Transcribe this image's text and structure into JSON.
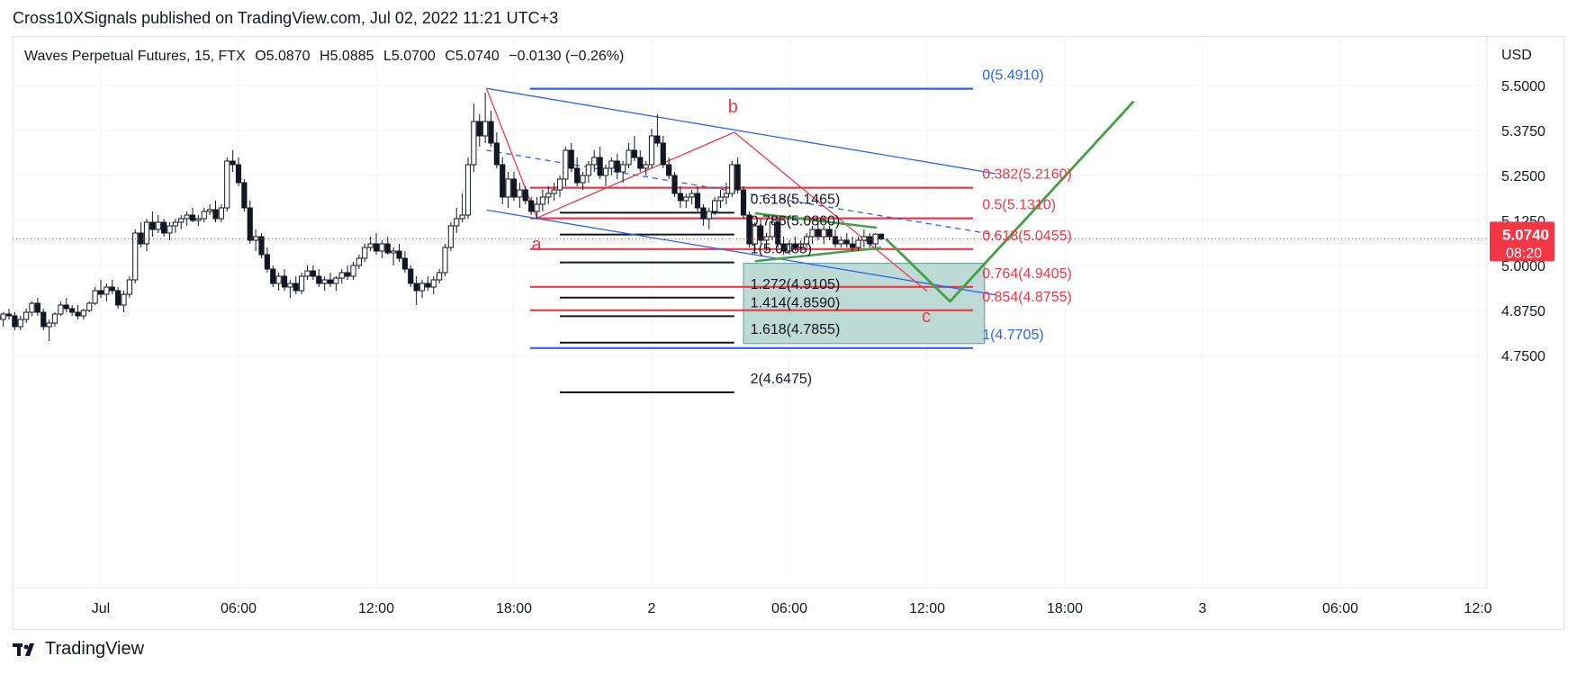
{
  "header": {
    "publish_line": "Cross10XSignals published on TradingView.com, Jul 02, 2022 11:21 UTC+3"
  },
  "legend": {
    "symbol": "Waves Perpetual Futures, 15, FTX",
    "open": "O5.0870",
    "high": "H5.0885",
    "low": "L5.0700",
    "close": "C5.0740",
    "change": "−0.0130 (−0.26%)"
  },
  "footer": {
    "brand": "TradingView",
    "icon": "tradingview-logo-icon"
  },
  "colors": {
    "up": "#ffffff",
    "down": "#131722",
    "fib_blue": "#2962ff",
    "fib_red": "#f23645",
    "channel": "#2962ff",
    "wave": "#f23645",
    "projection": "#43a047",
    "box": "#b2d4ce"
  },
  "chart_data": {
    "type": "candlestick",
    "currency_label": "USD",
    "price_axis": {
      "ticks": [
        "5.5000",
        "5.3750",
        "5.2500",
        "5.1250",
        "5.0000",
        "4.8750",
        "4.7500"
      ],
      "range": [
        4.6,
        5.53
      ]
    },
    "time_axis": {
      "ticks": [
        "Jul",
        "06:00",
        "12:00",
        "18:00",
        "2",
        "06:00",
        "12:00",
        "18:00",
        "3",
        "06:00",
        "12:0"
      ]
    },
    "last_price": {
      "value": "5.0740",
      "countdown": "08:20"
    },
    "wave_labels": [
      "a",
      "b",
      "c"
    ],
    "fib_right": [
      {
        "label": "0(5.4910)",
        "price": 5.491,
        "color": "blue"
      },
      {
        "label": "0.382(5.2160)",
        "price": 5.216,
        "color": "red"
      },
      {
        "label": "0.5(5.1310)",
        "price": 5.131,
        "color": "red"
      },
      {
        "label": "0.618(5.0455)",
        "price": 5.0455,
        "color": "red"
      },
      {
        "label": "0.764(4.9405)",
        "price": 4.9405,
        "color": "red"
      },
      {
        "label": "0.854(4.8755)",
        "price": 4.8755,
        "color": "red"
      },
      {
        "label": "1(4.7705)",
        "price": 4.7705,
        "color": "blue"
      }
    ],
    "fib_left": [
      {
        "label": "0.618(5.1465)",
        "price": 5.1465
      },
      {
        "label": "0.786(5.0860)",
        "price": 5.086
      },
      {
        "label": "1(5.0085)",
        "price": 5.0085
      },
      {
        "label": "1.272(4.9105)",
        "price": 4.9105
      },
      {
        "label": "1.414(4.8590)",
        "price": 4.859
      },
      {
        "label": "1.618(4.7855)",
        "price": 4.7855
      },
      {
        "label": "2(4.6475)",
        "price": 4.6475
      }
    ],
    "anchors": {
      "high_start": {
        "t": 16.8,
        "p": 5.492
      },
      "a": {
        "t": 19.0,
        "p": 5.132
      },
      "b": {
        "t": 27.6,
        "p": 5.37
      },
      "c": {
        "t": 36.0,
        "p": 4.928
      },
      "green_bottom": {
        "t": 37.0,
        "p": 4.9
      },
      "green_top": {
        "t": 45.0,
        "p": 5.456
      },
      "channel_top_end": {
        "t": 39.0,
        "p": 5.255
      },
      "channel_bot_start": {
        "t": 16.8,
        "p": 5.154
      },
      "channel_bot_end": {
        "t": 39.0,
        "p": 4.918
      },
      "channel_mid_start": {
        "t": 16.8,
        "p": 5.32
      },
      "channel_mid_end": {
        "t": 39.0,
        "p": 5.085
      },
      "tri_top_start": {
        "t": 28.5,
        "p": 5.145
      },
      "tri_top_end": {
        "t": 33.8,
        "p": 5.105
      },
      "tri_bot_start": {
        "t": 28.5,
        "p": 5.012
      },
      "tri_bot_end": {
        "t": 34.0,
        "p": 5.049
      },
      "box": {
        "t0": 28.0,
        "t1": 38.5,
        "p0": 5.006,
        "p1": 4.783
      }
    },
    "candles": [
      [
        -6.5,
        4.95,
        4.96,
        4.94,
        4.945
      ],
      [
        -6.25,
        4.945,
        4.955,
        4.93,
        4.935
      ],
      [
        -6.0,
        4.935,
        4.95,
        4.92,
        4.945
      ],
      [
        -5.75,
        4.945,
        4.955,
        4.92,
        4.925
      ],
      [
        -5.5,
        4.925,
        4.93,
        4.89,
        4.895
      ],
      [
        -5.25,
        4.895,
        4.9,
        4.86,
        4.87
      ],
      [
        -5.0,
        4.87,
        4.88,
        4.85,
        4.855
      ],
      [
        -4.75,
        4.855,
        4.87,
        4.83,
        4.86
      ],
      [
        -4.5,
        4.86,
        4.87,
        4.84,
        4.85
      ],
      [
        -4.25,
        4.85,
        4.87,
        4.83,
        4.865
      ],
      [
        -4.0,
        4.865,
        4.88,
        4.85,
        4.86
      ],
      [
        -3.75,
        4.86,
        4.87,
        4.82,
        4.83
      ],
      [
        -3.5,
        4.83,
        4.86,
        4.82,
        4.85
      ],
      [
        -3.25,
        4.85,
        4.88,
        4.84,
        4.87
      ],
      [
        -3.0,
        4.87,
        4.9,
        4.86,
        4.895
      ],
      [
        -2.75,
        4.895,
        4.91,
        4.86,
        4.87
      ],
      [
        -2.5,
        4.87,
        4.88,
        4.82,
        4.83
      ],
      [
        -2.25,
        4.83,
        4.85,
        4.79,
        4.84
      ],
      [
        -2.0,
        4.84,
        4.87,
        4.83,
        4.865
      ],
      [
        -1.75,
        4.865,
        4.9,
        4.86,
        4.89
      ],
      [
        -1.5,
        4.89,
        4.91,
        4.87,
        4.88
      ],
      [
        -1.25,
        4.88,
        4.89,
        4.86,
        4.87
      ],
      [
        -1.0,
        4.87,
        4.89,
        4.85,
        4.86
      ],
      [
        -0.75,
        4.86,
        4.88,
        4.85,
        4.875
      ],
      [
        -0.5,
        4.875,
        4.9,
        4.87,
        4.895
      ],
      [
        -0.25,
        4.895,
        4.94,
        4.89,
        4.93
      ],
      [
        0.0,
        4.93,
        4.96,
        4.91,
        4.92
      ],
      [
        0.25,
        4.92,
        4.95,
        4.9,
        4.94
      ],
      [
        0.5,
        4.94,
        4.96,
        4.92,
        4.93
      ],
      [
        0.75,
        4.93,
        4.94,
        4.88,
        4.89
      ],
      [
        1.0,
        4.89,
        4.93,
        4.87,
        4.92
      ],
      [
        1.25,
        4.92,
        4.97,
        4.91,
        4.96
      ],
      [
        1.5,
        4.96,
        5.1,
        4.95,
        5.09
      ],
      [
        1.75,
        5.09,
        5.12,
        5.05,
        5.06
      ],
      [
        2.0,
        5.06,
        5.13,
        5.04,
        5.12
      ],
      [
        2.25,
        5.12,
        5.15,
        5.08,
        5.1
      ],
      [
        2.5,
        5.1,
        5.14,
        5.09,
        5.12
      ],
      [
        2.75,
        5.12,
        5.13,
        5.08,
        5.09
      ],
      [
        3.0,
        5.09,
        5.12,
        5.07,
        5.11
      ],
      [
        3.25,
        5.11,
        5.13,
        5.09,
        5.12
      ],
      [
        3.5,
        5.12,
        5.14,
        5.1,
        5.13
      ],
      [
        3.75,
        5.13,
        5.15,
        5.11,
        5.14
      ],
      [
        4.0,
        5.14,
        5.16,
        5.12,
        5.125
      ],
      [
        4.25,
        5.125,
        5.14,
        5.11,
        5.13
      ],
      [
        4.5,
        5.13,
        5.16,
        5.12,
        5.15
      ],
      [
        4.75,
        5.15,
        5.17,
        5.14,
        5.155
      ],
      [
        5.0,
        5.155,
        5.18,
        5.12,
        5.13
      ],
      [
        5.25,
        5.13,
        5.17,
        5.12,
        5.16
      ],
      [
        5.5,
        5.16,
        5.3,
        5.15,
        5.29
      ],
      [
        5.75,
        5.29,
        5.32,
        5.26,
        5.28
      ],
      [
        6.0,
        5.28,
        5.3,
        5.22,
        5.23
      ],
      [
        6.25,
        5.23,
        5.24,
        5.15,
        5.16
      ],
      [
        6.5,
        5.16,
        5.18,
        5.06,
        5.07
      ],
      [
        6.75,
        5.07,
        5.1,
        5.04,
        5.08
      ],
      [
        7.0,
        5.08,
        5.09,
        5.02,
        5.03
      ],
      [
        7.25,
        5.03,
        5.05,
        4.98,
        4.99
      ],
      [
        7.5,
        4.99,
        5.0,
        4.94,
        4.95
      ],
      [
        7.75,
        4.95,
        4.98,
        4.93,
        4.97
      ],
      [
        8.0,
        4.97,
        4.99,
        4.93,
        4.94
      ],
      [
        8.25,
        4.94,
        4.96,
        4.91,
        4.95
      ],
      [
        8.5,
        4.95,
        4.97,
        4.92,
        4.93
      ],
      [
        8.75,
        4.93,
        4.98,
        4.92,
        4.97
      ],
      [
        9.0,
        4.97,
        5.0,
        4.96,
        4.985
      ],
      [
        9.25,
        4.985,
        5.0,
        4.96,
        4.97
      ],
      [
        9.5,
        4.97,
        4.99,
        4.94,
        4.95
      ],
      [
        9.75,
        4.95,
        4.97,
        4.93,
        4.96
      ],
      [
        10.0,
        4.96,
        4.98,
        4.94,
        4.95
      ],
      [
        10.25,
        4.95,
        4.97,
        4.93,
        4.965
      ],
      [
        10.5,
        4.965,
        4.99,
        4.95,
        4.98
      ],
      [
        10.75,
        4.98,
        5.0,
        4.96,
        4.97
      ],
      [
        11.0,
        4.97,
        5.01,
        4.96,
        5.0
      ],
      [
        11.25,
        5.0,
        5.03,
        4.99,
        5.02
      ],
      [
        11.5,
        5.02,
        5.06,
        5.01,
        5.05
      ],
      [
        11.75,
        5.05,
        5.08,
        5.04,
        5.06
      ],
      [
        12.0,
        5.06,
        5.09,
        5.03,
        5.04
      ],
      [
        12.25,
        5.04,
        5.07,
        5.02,
        5.06
      ],
      [
        12.5,
        5.06,
        5.08,
        5.03,
        5.035
      ],
      [
        12.75,
        5.035,
        5.05,
        5.0,
        5.04
      ],
      [
        13.0,
        5.04,
        5.06,
        5.01,
        5.02
      ],
      [
        13.25,
        5.02,
        5.04,
        4.98,
        4.99
      ],
      [
        13.5,
        4.99,
        5.0,
        4.94,
        4.95
      ],
      [
        13.75,
        4.95,
        4.97,
        4.89,
        4.93
      ],
      [
        14.0,
        4.93,
        4.96,
        4.91,
        4.95
      ],
      [
        14.25,
        4.95,
        4.97,
        4.93,
        4.94
      ],
      [
        14.5,
        4.94,
        4.97,
        4.92,
        4.96
      ],
      [
        14.75,
        4.96,
        4.99,
        4.95,
        4.98
      ],
      [
        15.0,
        4.98,
        5.06,
        4.97,
        5.05
      ],
      [
        15.25,
        5.05,
        5.12,
        5.04,
        5.11
      ],
      [
        15.5,
        5.11,
        5.16,
        5.09,
        5.13
      ],
      [
        15.75,
        5.13,
        5.2,
        5.12,
        5.14
      ],
      [
        16.0,
        5.14,
        5.3,
        5.13,
        5.28
      ],
      [
        16.25,
        5.28,
        5.45,
        5.26,
        5.4
      ],
      [
        16.5,
        5.4,
        5.42,
        5.33,
        5.36
      ],
      [
        16.75,
        5.36,
        5.48,
        5.34,
        5.4
      ],
      [
        17.0,
        5.4,
        5.43,
        5.33,
        5.34
      ],
      [
        17.25,
        5.34,
        5.37,
        5.27,
        5.28
      ],
      [
        17.5,
        5.28,
        5.3,
        5.17,
        5.19
      ],
      [
        17.75,
        5.19,
        5.26,
        5.16,
        5.24
      ],
      [
        18.0,
        5.24,
        5.26,
        5.18,
        5.19
      ],
      [
        18.25,
        5.19,
        5.23,
        5.16,
        5.21
      ],
      [
        18.5,
        5.21,
        5.22,
        5.17,
        5.18
      ],
      [
        18.75,
        5.18,
        5.19,
        5.14,
        5.15
      ],
      [
        19.0,
        5.15,
        5.19,
        5.13,
        5.17
      ],
      [
        19.25,
        5.17,
        5.21,
        5.15,
        5.19
      ],
      [
        19.5,
        5.19,
        5.22,
        5.17,
        5.2
      ],
      [
        19.75,
        5.2,
        5.23,
        5.18,
        5.21
      ],
      [
        20.0,
        5.21,
        5.25,
        5.19,
        5.24
      ],
      [
        20.25,
        5.24,
        5.33,
        5.22,
        5.32
      ],
      [
        20.5,
        5.32,
        5.34,
        5.26,
        5.27
      ],
      [
        20.75,
        5.27,
        5.3,
        5.22,
        5.23
      ],
      [
        21.0,
        5.23,
        5.26,
        5.21,
        5.25
      ],
      [
        21.25,
        5.25,
        5.29,
        5.23,
        5.28
      ],
      [
        21.5,
        5.28,
        5.32,
        5.26,
        5.3
      ],
      [
        21.75,
        5.3,
        5.33,
        5.24,
        5.25
      ],
      [
        22.0,
        5.25,
        5.28,
        5.22,
        5.27
      ],
      [
        22.25,
        5.27,
        5.3,
        5.25,
        5.29
      ],
      [
        22.5,
        5.29,
        5.31,
        5.24,
        5.26
      ],
      [
        22.75,
        5.26,
        5.29,
        5.23,
        5.28
      ],
      [
        23.0,
        5.28,
        5.34,
        5.27,
        5.32
      ],
      [
        23.25,
        5.32,
        5.36,
        5.29,
        5.3
      ],
      [
        23.5,
        5.3,
        5.32,
        5.26,
        5.27
      ],
      [
        23.75,
        5.27,
        5.29,
        5.25,
        5.28
      ],
      [
        24.0,
        5.28,
        5.38,
        5.27,
        5.36
      ],
      [
        24.25,
        5.36,
        5.42,
        5.33,
        5.34
      ],
      [
        24.5,
        5.34,
        5.36,
        5.27,
        5.28
      ],
      [
        24.75,
        5.28,
        5.3,
        5.24,
        5.25
      ],
      [
        25.0,
        5.25,
        5.26,
        5.19,
        5.2
      ],
      [
        25.25,
        5.2,
        5.22,
        5.16,
        5.18
      ],
      [
        25.5,
        5.18,
        5.2,
        5.16,
        5.19
      ],
      [
        25.75,
        5.19,
        5.21,
        5.17,
        5.2
      ],
      [
        26.0,
        5.2,
        5.22,
        5.15,
        5.16
      ],
      [
        26.25,
        5.16,
        5.17,
        5.11,
        5.13
      ],
      [
        26.5,
        5.13,
        5.16,
        5.1,
        5.15
      ],
      [
        26.75,
        5.15,
        5.19,
        5.14,
        5.18
      ],
      [
        27.0,
        5.18,
        5.21,
        5.16,
        5.19
      ],
      [
        27.25,
        5.19,
        5.23,
        5.17,
        5.2
      ],
      [
        27.5,
        5.2,
        5.29,
        5.19,
        5.28
      ],
      [
        27.75,
        5.28,
        5.3,
        5.2,
        5.21
      ],
      [
        28.0,
        5.21,
        5.22,
        5.13,
        5.14
      ],
      [
        28.25,
        5.14,
        5.15,
        5.05,
        5.06
      ],
      [
        28.5,
        5.06,
        5.12,
        5.04,
        5.11
      ],
      [
        28.75,
        5.11,
        5.13,
        5.06,
        5.07
      ],
      [
        29.0,
        5.07,
        5.09,
        5.04,
        5.08
      ],
      [
        29.25,
        5.08,
        5.14,
        5.07,
        5.12
      ],
      [
        29.5,
        5.12,
        5.13,
        5.05,
        5.06
      ],
      [
        29.75,
        5.06,
        5.08,
        5.03,
        5.04
      ],
      [
        30.0,
        5.04,
        5.07,
        5.03,
        5.06
      ],
      [
        30.25,
        5.06,
        5.08,
        5.04,
        5.05
      ],
      [
        30.5,
        5.05,
        5.07,
        5.04,
        5.06
      ],
      [
        30.75,
        5.06,
        5.09,
        5.05,
        5.08
      ],
      [
        31.0,
        5.08,
        5.11,
        5.06,
        5.1
      ],
      [
        31.25,
        5.1,
        5.12,
        5.07,
        5.08
      ],
      [
        31.5,
        5.08,
        5.11,
        5.06,
        5.1
      ],
      [
        31.75,
        5.1,
        5.11,
        5.07,
        5.08
      ],
      [
        32.0,
        5.08,
        5.1,
        5.05,
        5.06
      ],
      [
        32.25,
        5.06,
        5.08,
        5.05,
        5.07
      ],
      [
        32.5,
        5.07,
        5.09,
        5.05,
        5.06
      ],
      [
        32.75,
        5.06,
        5.08,
        5.04,
        5.05
      ],
      [
        33.0,
        5.05,
        5.08,
        5.04,
        5.07
      ],
      [
        33.25,
        5.07,
        5.1,
        5.05,
        5.08
      ],
      [
        33.5,
        5.08,
        5.09,
        5.05,
        5.06
      ],
      [
        33.75,
        5.06,
        5.09,
        5.05,
        5.087
      ],
      [
        34.0,
        5.087,
        5.0885,
        5.07,
        5.074
      ]
    ]
  }
}
